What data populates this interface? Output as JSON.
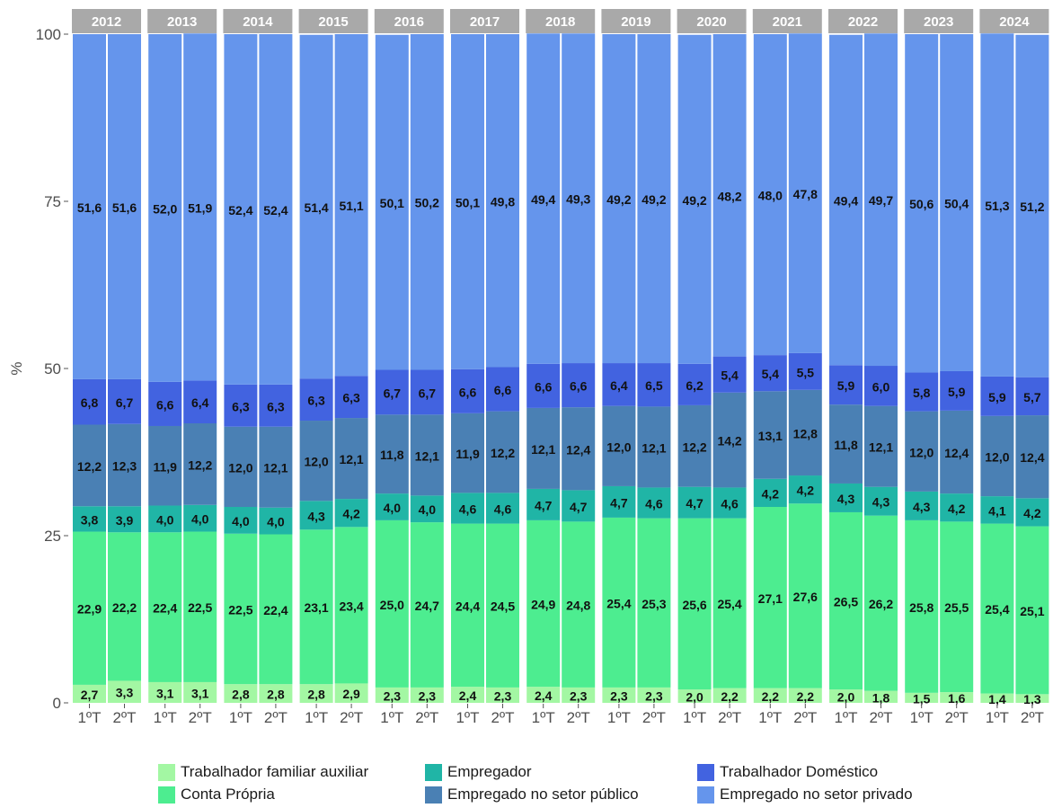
{
  "chart_data": {
    "type": "bar",
    "stacked": true,
    "percent": true,
    "ylabel": "%",
    "xlabel": "",
    "ylim": [
      0,
      100
    ],
    "yticks": [
      "0",
      "25",
      "50",
      "75",
      "100"
    ],
    "grid": false,
    "legend_position": "bottom",
    "facets": [
      "2012",
      "2013",
      "2014",
      "2015",
      "2016",
      "2017",
      "2018",
      "2019",
      "2020",
      "2021",
      "2022",
      "2023",
      "2024"
    ],
    "categories": [
      "1ºT",
      "2ºT"
    ],
    "series": [
      {
        "name": "Trabalhador familiar auxiliar",
        "color": "#a3f7a3",
        "values": [
          [
            2.7,
            3.3
          ],
          [
            3.1,
            3.1
          ],
          [
            2.8,
            2.8
          ],
          [
            2.8,
            2.9
          ],
          [
            2.3,
            2.3
          ],
          [
            2.4,
            2.3
          ],
          [
            2.4,
            2.3
          ],
          [
            2.3,
            2.3
          ],
          [
            2.0,
            2.2
          ],
          [
            2.2,
            2.2
          ],
          [
            2.0,
            1.8
          ],
          [
            1.5,
            1.6
          ],
          [
            1.4,
            1.3
          ]
        ],
        "labels": [
          [
            "2,7",
            "3,3"
          ],
          [
            "3,1",
            "3,1"
          ],
          [
            "2,8",
            "2,8"
          ],
          [
            "2,8",
            "2,9"
          ],
          [
            "2,3",
            "2,3"
          ],
          [
            "2,4",
            "2,3"
          ],
          [
            "2,4",
            "2,3"
          ],
          [
            "2,3",
            "2,3"
          ],
          [
            "2,0",
            "2,2"
          ],
          [
            "2,2",
            "2,2"
          ],
          [
            "2,0",
            "1,8"
          ],
          [
            "1,5",
            "1,6"
          ],
          [
            "1,4",
            "1,3"
          ]
        ]
      },
      {
        "name": "Conta Própria",
        "color": "#4ded90",
        "values": [
          [
            22.9,
            22.2
          ],
          [
            22.4,
            22.5
          ],
          [
            22.5,
            22.4
          ],
          [
            23.1,
            23.4
          ],
          [
            25.0,
            24.7
          ],
          [
            24.4,
            24.5
          ],
          [
            24.9,
            24.8
          ],
          [
            25.4,
            25.3
          ],
          [
            25.6,
            25.4
          ],
          [
            27.1,
            27.6
          ],
          [
            26.5,
            26.2
          ],
          [
            25.8,
            25.5
          ],
          [
            25.4,
            25.1
          ]
        ],
        "labels": [
          [
            "22,9",
            "22,2"
          ],
          [
            "22,4",
            "22,5"
          ],
          [
            "22,5",
            "22,4"
          ],
          [
            "23,1",
            "23,4"
          ],
          [
            "25,0",
            "24,7"
          ],
          [
            "24,4",
            "24,5"
          ],
          [
            "24,9",
            "24,8"
          ],
          [
            "25,4",
            "25,3"
          ],
          [
            "25,6",
            "25,4"
          ],
          [
            "27,1",
            "27,6"
          ],
          [
            "26,5",
            "26,2"
          ],
          [
            "25,8",
            "25,5"
          ],
          [
            "25,4",
            "25,1"
          ]
        ]
      },
      {
        "name": "Empregador",
        "color": "#20b5a6",
        "values": [
          [
            3.8,
            3.9
          ],
          [
            4.0,
            4.0
          ],
          [
            4.0,
            4.0
          ],
          [
            4.3,
            4.2
          ],
          [
            4.0,
            4.0
          ],
          [
            4.6,
            4.6
          ],
          [
            4.7,
            4.7
          ],
          [
            4.7,
            4.6
          ],
          [
            4.7,
            4.6
          ],
          [
            4.2,
            4.2
          ],
          [
            4.3,
            4.3
          ],
          [
            4.3,
            4.2
          ],
          [
            4.1,
            4.2
          ]
        ],
        "labels": [
          [
            "3,8",
            "3,9"
          ],
          [
            "4,0",
            "4,0"
          ],
          [
            "4,0",
            "4,0"
          ],
          [
            "4,3",
            "4,2"
          ],
          [
            "4,0",
            "4,0"
          ],
          [
            "4,6",
            "4,6"
          ],
          [
            "4,7",
            "4,7"
          ],
          [
            "4,7",
            "4,6"
          ],
          [
            "4,7",
            "4,6"
          ],
          [
            "4,2",
            "4,2"
          ],
          [
            "4,3",
            "4,3"
          ],
          [
            "4,3",
            "4,2"
          ],
          [
            "4,1",
            "4,2"
          ]
        ]
      },
      {
        "name": "Empregado no setor público",
        "color": "#4a80b4",
        "values": [
          [
            12.2,
            12.3
          ],
          [
            11.9,
            12.2
          ],
          [
            12.0,
            12.1
          ],
          [
            12.0,
            12.1
          ],
          [
            11.8,
            12.1
          ],
          [
            11.9,
            12.2
          ],
          [
            12.1,
            12.4
          ],
          [
            12.0,
            12.1
          ],
          [
            12.2,
            14.2
          ],
          [
            13.1,
            12.8
          ],
          [
            11.8,
            12.1
          ],
          [
            12.0,
            12.4
          ],
          [
            12.0,
            12.4
          ]
        ],
        "labels": [
          [
            "12,2",
            "12,3"
          ],
          [
            "11,9",
            "12,2"
          ],
          [
            "12,0",
            "12,1"
          ],
          [
            "12,0",
            "12,1"
          ],
          [
            "11,8",
            "12,1"
          ],
          [
            "11,9",
            "12,2"
          ],
          [
            "12,1",
            "12,4"
          ],
          [
            "12,0",
            "12,1"
          ],
          [
            "12,2",
            "14,2"
          ],
          [
            "13,1",
            "12,8"
          ],
          [
            "11,8",
            "12,1"
          ],
          [
            "12,0",
            "12,4"
          ],
          [
            "12,0",
            "12,4"
          ]
        ]
      },
      {
        "name": "Trabalhador Doméstico",
        "color": "#4263e0",
        "values": [
          [
            6.8,
            6.7
          ],
          [
            6.6,
            6.4
          ],
          [
            6.3,
            6.3
          ],
          [
            6.3,
            6.3
          ],
          [
            6.7,
            6.7
          ],
          [
            6.6,
            6.6
          ],
          [
            6.6,
            6.6
          ],
          [
            6.4,
            6.5
          ],
          [
            6.2,
            5.4
          ],
          [
            5.4,
            5.5
          ],
          [
            5.9,
            6.0
          ],
          [
            5.8,
            5.9
          ],
          [
            5.9,
            5.7
          ]
        ],
        "labels": [
          [
            "6,8",
            "6,7"
          ],
          [
            "6,6",
            "6,4"
          ],
          [
            "6,3",
            "6,3"
          ],
          [
            "6,3",
            "6,3"
          ],
          [
            "6,7",
            "6,7"
          ],
          [
            "6,6",
            "6,6"
          ],
          [
            "6,6",
            "6,6"
          ],
          [
            "6,4",
            "6,5"
          ],
          [
            "6,2",
            "5,4"
          ],
          [
            "5,4",
            "5,5"
          ],
          [
            "5,9",
            "6,0"
          ],
          [
            "5,8",
            "5,9"
          ],
          [
            "5,9",
            "5,7"
          ]
        ]
      },
      {
        "name": "Empregado no setor privado",
        "color": "#6595ec",
        "values": [
          [
            51.6,
            51.6
          ],
          [
            52.0,
            51.9
          ],
          [
            52.4,
            52.4
          ],
          [
            51.4,
            51.1
          ],
          [
            50.1,
            50.2
          ],
          [
            50.1,
            49.8
          ],
          [
            49.4,
            49.3
          ],
          [
            49.2,
            49.2
          ],
          [
            49.2,
            48.2
          ],
          [
            48.0,
            47.8
          ],
          [
            49.4,
            49.7
          ],
          [
            50.6,
            50.4
          ],
          [
            51.3,
            51.2
          ]
        ],
        "labels": [
          [
            "51,6",
            "51,6"
          ],
          [
            "52,0",
            "51,9"
          ],
          [
            "52,4",
            "52,4"
          ],
          [
            "51,4",
            "51,1"
          ],
          [
            "50,1",
            "50,2"
          ],
          [
            "50,1",
            "49,8"
          ],
          [
            "49,4",
            "49,3"
          ],
          [
            "49,2",
            "49,2"
          ],
          [
            "49,2",
            "48,2"
          ],
          [
            "48,0",
            "47,8"
          ],
          [
            "49,4",
            "49,7"
          ],
          [
            "50,6",
            "50,4"
          ],
          [
            "51,3",
            "51,2"
          ]
        ]
      }
    ]
  },
  "colors": {
    "strip_background": "#a9a9a9",
    "strip_text": "#ffffff",
    "label_text": "#111111",
    "axis_text": "#4d4d4d"
  }
}
